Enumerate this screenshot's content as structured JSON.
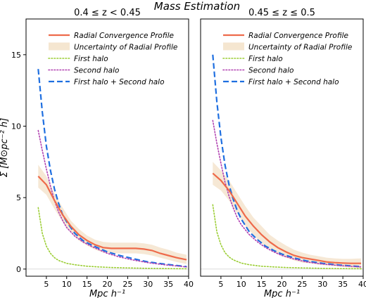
{
  "title": "Mass Estimation",
  "chart_data": [
    {
      "type": "line",
      "title": "0.4 ≤ z < 0.45",
      "xlabel": "Mpc h⁻¹",
      "ylabel": "Σ [M⊙pc⁻² h]",
      "xlim": [
        0,
        40
      ],
      "ylim": [
        -0.5,
        17.5
      ],
      "xticks": [
        5,
        10,
        15,
        20,
        25,
        30,
        35,
        40
      ],
      "yticks": [
        0,
        5,
        10,
        15
      ],
      "grid": false,
      "legend_position": "top-right",
      "series": [
        {
          "name": "Radial Convergence Profile",
          "color": "#ee6a4a",
          "style": "solid",
          "x": [
            3,
            5,
            7,
            9,
            11,
            13,
            15,
            17,
            19,
            21,
            23,
            25,
            27,
            29,
            31,
            33,
            35,
            37,
            39.5
          ],
          "y": [
            6.5,
            5.9,
            4.8,
            3.8,
            3.0,
            2.4,
            2.0,
            1.7,
            1.5,
            1.45,
            1.45,
            1.45,
            1.45,
            1.4,
            1.3,
            1.1,
            0.95,
            0.8,
            0.65
          ],
          "band_upper": [
            7.3,
            6.5,
            5.3,
            4.3,
            3.4,
            2.8,
            2.35,
            2.05,
            1.9,
            1.85,
            1.85,
            1.85,
            1.85,
            1.8,
            1.7,
            1.5,
            1.35,
            1.15,
            1.0
          ],
          "band_lower": [
            5.7,
            5.2,
            4.2,
            3.3,
            2.6,
            2.0,
            1.65,
            1.35,
            1.15,
            1.1,
            1.1,
            1.1,
            1.1,
            1.05,
            0.95,
            0.8,
            0.65,
            0.5,
            0.35
          ]
        },
        {
          "name": "Uncertainty of Radial Profile",
          "color": "#f5e6d0",
          "style": "band"
        },
        {
          "name": "First halo",
          "color": "#9acd32",
          "style": "dotted",
          "x": [
            3,
            4,
            5,
            6,
            7,
            8,
            10,
            12,
            15,
            18,
            21,
            25,
            30,
            35,
            39.5
          ],
          "y": [
            4.3,
            2.5,
            1.6,
            1.1,
            0.8,
            0.6,
            0.4,
            0.3,
            0.2,
            0.15,
            0.11,
            0.08,
            0.05,
            0.03,
            0.02
          ]
        },
        {
          "name": "Second halo",
          "color": "#b040b0",
          "style": "dotted",
          "x": [
            3,
            4,
            5,
            6,
            7,
            8,
            9,
            10,
            12,
            14,
            16,
            18,
            20,
            23,
            26,
            30,
            34,
            39.5
          ],
          "y": [
            9.7,
            8.3,
            7.0,
            5.8,
            4.8,
            4.0,
            3.4,
            2.9,
            2.3,
            1.9,
            1.6,
            1.35,
            1.1,
            0.85,
            0.65,
            0.45,
            0.3,
            0.15
          ]
        },
        {
          "name": "First halo + Second halo",
          "color": "#1f6fe0",
          "style": "dashed",
          "x": [
            3,
            4,
            5,
            6,
            7,
            8,
            9,
            10,
            12,
            14,
            16,
            18,
            20,
            23,
            26,
            30,
            34,
            39.5
          ],
          "y": [
            14.0,
            11.0,
            8.6,
            6.9,
            5.6,
            4.6,
            3.8,
            3.3,
            2.5,
            2.0,
            1.7,
            1.45,
            1.2,
            0.95,
            0.75,
            0.5,
            0.35,
            0.17
          ]
        }
      ]
    },
    {
      "type": "line",
      "title": "0.45 ≤ z ≤ 0.5",
      "xlabel": "Mpc h⁻¹",
      "ylabel": "",
      "xlim": [
        0,
        40
      ],
      "ylim": [
        -0.5,
        17.5
      ],
      "xticks": [
        5,
        10,
        15,
        20,
        25,
        30,
        35,
        40
      ],
      "yticks": [],
      "grid": false,
      "legend_position": "top-right",
      "series": [
        {
          "name": "Radial Convergence Profile",
          "color": "#ee6a4a",
          "style": "solid",
          "x": [
            3,
            5,
            7,
            9,
            11,
            13,
            15,
            17,
            19,
            21,
            23,
            25,
            27,
            29,
            31,
            33,
            35,
            37,
            39.5
          ],
          "y": [
            6.7,
            6.2,
            5.5,
            4.6,
            3.7,
            3.0,
            2.4,
            1.9,
            1.5,
            1.2,
            0.95,
            0.8,
            0.7,
            0.6,
            0.5,
            0.45,
            0.42,
            0.4,
            0.4
          ],
          "band_upper": [
            7.5,
            6.9,
            6.2,
            5.3,
            4.4,
            3.6,
            3.0,
            2.4,
            2.0,
            1.65,
            1.35,
            1.15,
            1.0,
            0.9,
            0.8,
            0.75,
            0.72,
            0.72,
            0.75
          ],
          "band_lower": [
            5.9,
            5.5,
            4.8,
            3.9,
            3.0,
            2.4,
            1.8,
            1.4,
            1.05,
            0.8,
            0.6,
            0.45,
            0.4,
            0.3,
            0.25,
            0.2,
            0.15,
            0.1,
            0.05
          ]
        },
        {
          "name": "Uncertainty of Radial Profile",
          "color": "#f5e6d0",
          "style": "band"
        },
        {
          "name": "First halo",
          "color": "#9acd32",
          "style": "dotted",
          "x": [
            3,
            4,
            5,
            6,
            7,
            8,
            10,
            12,
            15,
            18,
            21,
            25,
            30,
            35,
            39.5
          ],
          "y": [
            4.5,
            2.6,
            1.7,
            1.15,
            0.85,
            0.65,
            0.42,
            0.3,
            0.2,
            0.15,
            0.11,
            0.08,
            0.05,
            0.03,
            0.02
          ]
        },
        {
          "name": "Second halo",
          "color": "#b040b0",
          "style": "dotted",
          "x": [
            3,
            4,
            5,
            6,
            7,
            8,
            9,
            10,
            12,
            14,
            16,
            18,
            20,
            23,
            26,
            30,
            34,
            39.5
          ],
          "y": [
            10.4,
            8.8,
            7.4,
            6.1,
            5.1,
            4.3,
            3.6,
            3.1,
            2.4,
            1.9,
            1.5,
            1.2,
            0.95,
            0.7,
            0.5,
            0.35,
            0.25,
            0.15
          ]
        },
        {
          "name": "First halo + Second halo",
          "color": "#1f6fe0",
          "style": "dashed",
          "x": [
            3,
            4,
            5,
            6,
            7,
            8,
            9,
            10,
            12,
            14,
            16,
            18,
            20,
            23,
            26,
            30,
            34,
            39.5
          ],
          "y": [
            15.0,
            11.7,
            9.2,
            7.3,
            5.9,
            4.9,
            4.1,
            3.5,
            2.6,
            2.05,
            1.6,
            1.3,
            1.05,
            0.78,
            0.57,
            0.4,
            0.28,
            0.17
          ]
        }
      ]
    }
  ]
}
